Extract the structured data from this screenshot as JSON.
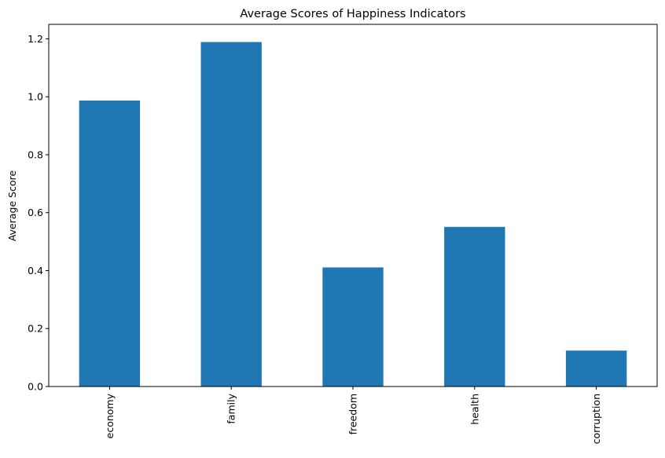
{
  "chart_data": {
    "type": "bar",
    "title": "Average Scores of Happiness Indicators",
    "xlabel": "",
    "ylabel": "Average Score",
    "categories": [
      "economy",
      "family",
      "freedom",
      "health",
      "corruption"
    ],
    "values": [
      0.987,
      1.189,
      0.411,
      0.551,
      0.124
    ],
    "ylim": [
      0,
      1.25
    ],
    "yticks": [
      "0.0",
      "0.2",
      "0.4",
      "0.6",
      "0.8",
      "1.0",
      "1.2"
    ],
    "grid": false,
    "bar_color": "#1f77b4"
  }
}
